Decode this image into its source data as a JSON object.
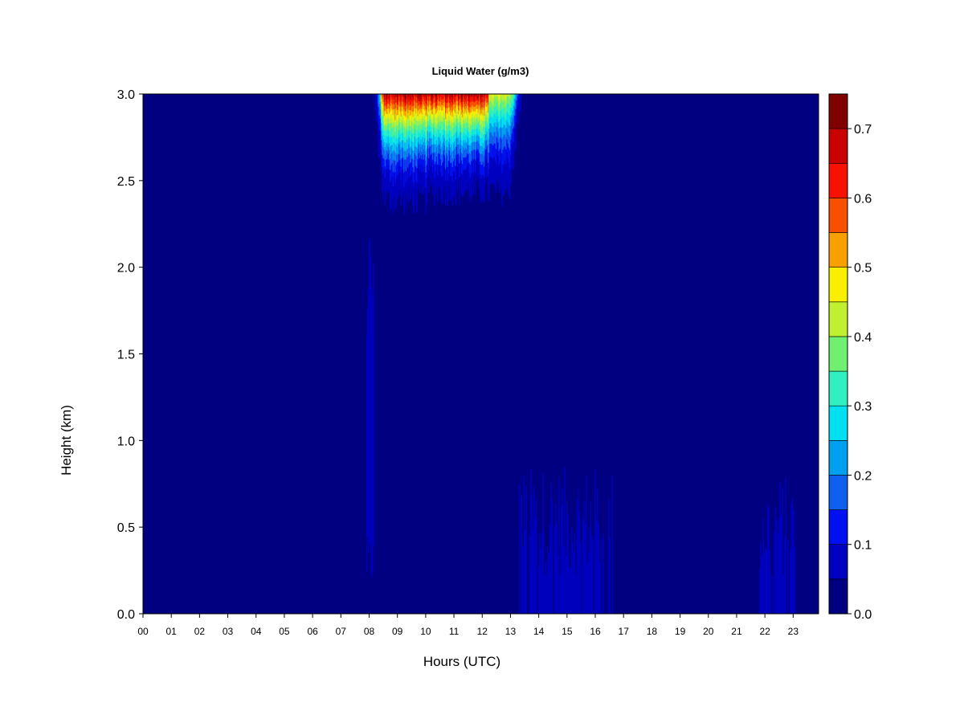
{
  "chart_data": {
    "type": "heatmap",
    "title": "Liquid Water (g/m3)",
    "xlabel": "Hours (UTC)",
    "ylabel": "Height (km)",
    "xlim": [
      0,
      23.9
    ],
    "ylim": [
      0,
      3.0
    ],
    "x_ticks": [
      "00",
      "01",
      "02",
      "03",
      "04",
      "05",
      "06",
      "07",
      "08",
      "09",
      "10",
      "11",
      "12",
      "13",
      "14",
      "15",
      "16",
      "17",
      "18",
      "19",
      "20",
      "21",
      "22",
      "23"
    ],
    "y_ticks": [
      "0.0",
      "0.5",
      "1.0",
      "1.5",
      "2.0",
      "2.5",
      "3.0"
    ],
    "y_tick_values": [
      0,
      0.5,
      1.0,
      1.5,
      2.0,
      2.5,
      3.0
    ],
    "colorbar": {
      "range": [
        0,
        0.75
      ],
      "levels": [
        0,
        0.05,
        0.1,
        0.15,
        0.2,
        0.25,
        0.3,
        0.35,
        0.4,
        0.45,
        0.5,
        0.55,
        0.6,
        0.65,
        0.7,
        0.75
      ],
      "colors": [
        "#000080",
        "#0000C0",
        "#0010F0",
        "#1060F0",
        "#00A0F0",
        "#00E0F0",
        "#30F0C0",
        "#70F070",
        "#C0F030",
        "#F8F000",
        "#F8A000",
        "#F85000",
        "#F81000",
        "#C80000",
        "#800000"
      ],
      "tick_labels": [
        "0.0",
        "0.1",
        "0.2",
        "0.3",
        "0.4",
        "0.5",
        "0.6",
        "0.7"
      ],
      "tick_values": [
        0,
        0.1,
        0.2,
        0.3,
        0.4,
        0.5,
        0.6,
        0.7
      ]
    },
    "features": [
      {
        "type": "cloud_layer",
        "x_start": 8.2,
        "x_end": 13.35,
        "base_km": 2.3,
        "top_km": 3.0,
        "peak_value": 0.7,
        "peak_x_range": [
          8.4,
          12.2
        ]
      },
      {
        "type": "thin_column",
        "x_start": 7.9,
        "x_end": 8.15,
        "base_km": 0.15,
        "top_km": 2.2,
        "value": 0.07
      },
      {
        "type": "low_patch",
        "x_start": 13.3,
        "x_end": 16.6,
        "base_km": 0.0,
        "top_km": 0.85,
        "value": 0.07
      },
      {
        "type": "low_patch",
        "x_start": 21.8,
        "x_end": 23.05,
        "base_km": 0.0,
        "top_km": 0.8,
        "value": 0.06
      }
    ]
  }
}
